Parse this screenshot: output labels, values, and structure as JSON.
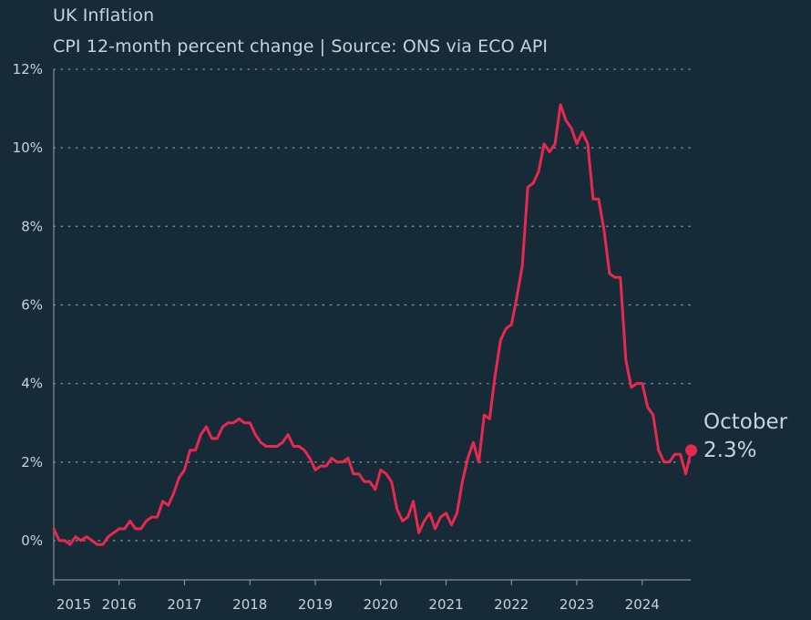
{
  "chart_data": {
    "type": "line",
    "title": "UK Inflation",
    "subtitle": "CPI 12-month percent change | Source: ONS via ECO API",
    "xlabel": "",
    "ylabel": "",
    "ylim": [
      -1,
      12
    ],
    "y_ticks": [
      {
        "value": 0,
        "label": "0%"
      },
      {
        "value": 2,
        "label": "2%"
      },
      {
        "value": 4,
        "label": "4%"
      },
      {
        "value": 6,
        "label": "6%"
      },
      {
        "value": 8,
        "label": "8%"
      },
      {
        "value": 10,
        "label": "10%"
      },
      {
        "value": 12,
        "label": "12%"
      }
    ],
    "x_ticks": [
      "2015",
      "2016",
      "2017",
      "2018",
      "2019",
      "2020",
      "2021",
      "2022",
      "2023",
      "2024"
    ],
    "grid": "horizontal dotted",
    "line_color": "#e8294f",
    "end_annotation": {
      "month": "October",
      "value": "2.3%"
    },
    "series": [
      {
        "start": "2015-01",
        "values": [
          0.3,
          0.0,
          0.0,
          -0.1,
          0.1,
          0.0,
          0.1,
          0.0,
          -0.1,
          -0.1,
          0.1,
          0.2,
          0.3,
          0.3,
          0.5,
          0.3,
          0.3,
          0.5,
          0.6,
          0.6,
          1.0,
          0.9,
          1.2,
          1.6,
          1.8,
          2.3,
          2.3,
          2.7,
          2.9,
          2.6,
          2.6,
          2.9,
          3.0,
          3.0,
          3.1,
          3.0,
          3.0,
          2.7,
          2.5,
          2.4,
          2.4,
          2.4,
          2.5,
          2.7,
          2.4,
          2.4,
          2.3,
          2.1,
          1.8,
          1.9,
          1.9,
          2.1,
          2.0,
          2.0,
          2.1,
          1.7,
          1.7,
          1.5,
          1.5,
          1.3,
          1.8,
          1.7,
          1.5,
          0.8,
          0.5,
          0.6,
          1.0,
          0.2,
          0.5,
          0.7,
          0.3,
          0.6,
          0.7,
          0.4,
          0.7,
          1.5,
          2.1,
          2.5,
          2.0,
          3.2,
          3.1,
          4.2,
          5.1,
          5.4,
          5.5,
          6.2,
          7.0,
          9.0,
          9.1,
          9.4,
          10.1,
          9.9,
          10.1,
          11.1,
          10.7,
          10.5,
          10.1,
          10.4,
          10.1,
          8.7,
          8.7,
          7.9,
          6.8,
          6.7,
          6.7,
          4.6,
          3.9,
          4.0,
          4.0,
          3.4,
          3.2,
          2.3,
          2.0,
          2.0,
          2.2,
          2.2,
          1.7,
          2.3
        ]
      }
    ]
  }
}
